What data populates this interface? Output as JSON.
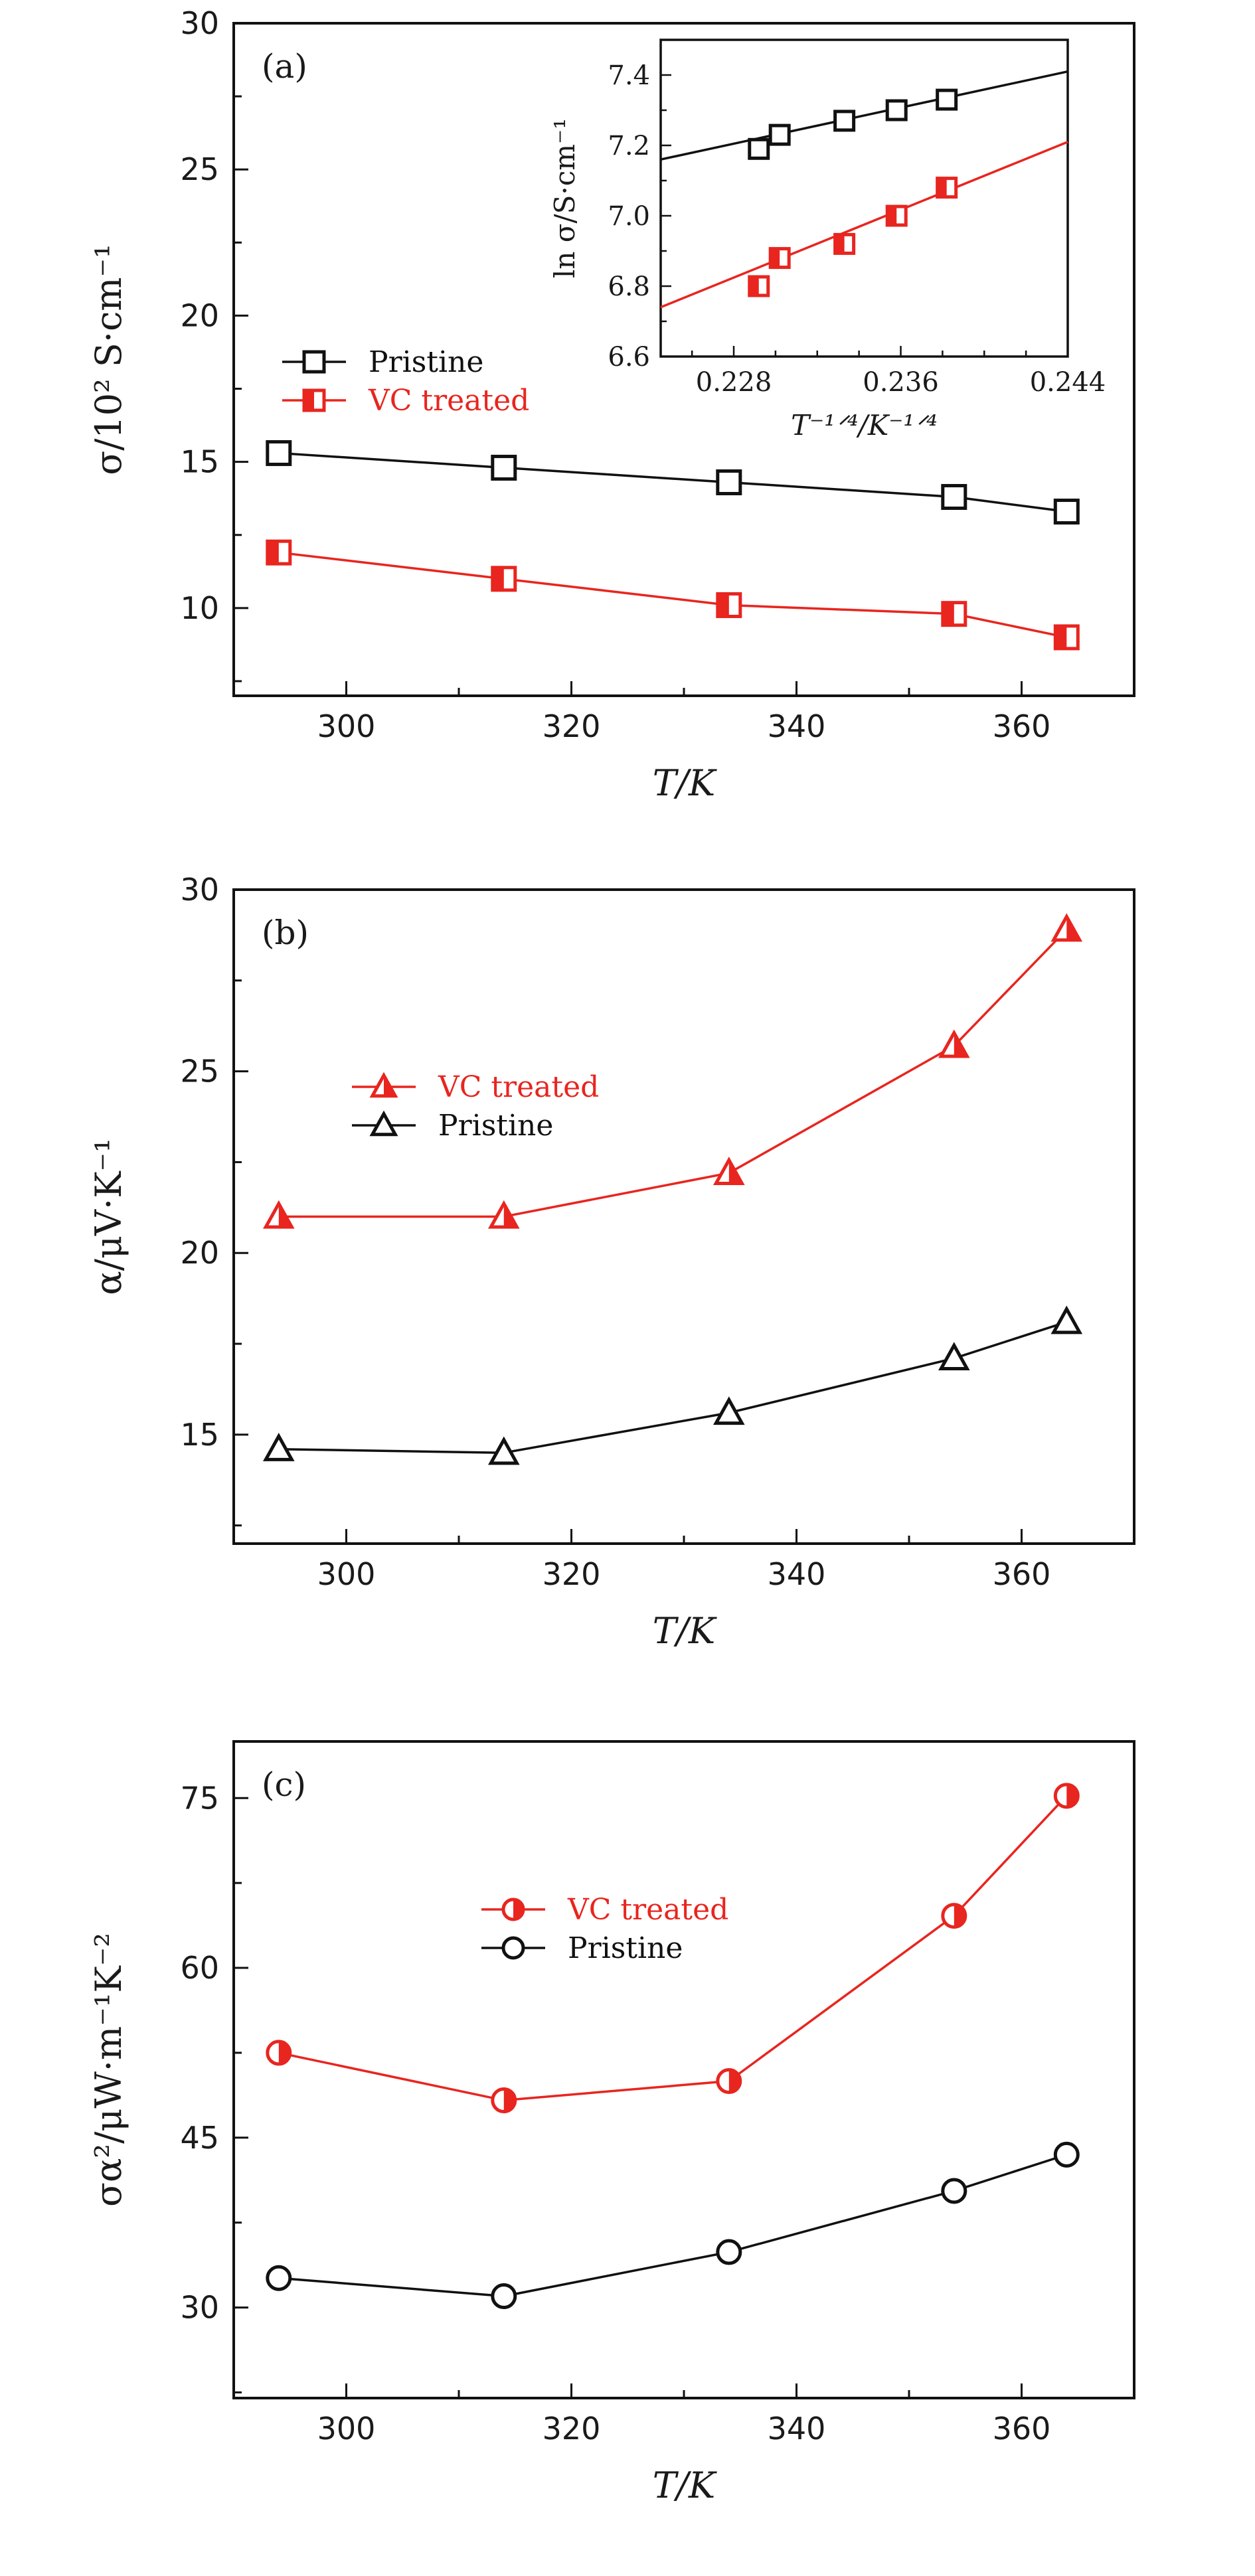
{
  "colors": {
    "black": "#111111",
    "red": "#e8251f"
  },
  "panels": [
    {
      "label": "(a)",
      "xlabel": "T/K",
      "ylabel": "σ/10² S·cm⁻¹",
      "legend_entries": [
        {
          "text": "Pristine",
          "series_index": 0
        },
        {
          "text": "VC treated",
          "series_index": 1
        }
      ]
    },
    {
      "label": "(b)",
      "xlabel": "T/K",
      "ylabel": "α/μV·K⁻¹",
      "legend_entries": [
        {
          "text": "VC treated",
          "series_index": 1
        },
        {
          "text": "Pristine",
          "series_index": 0
        }
      ]
    },
    {
      "label": "(c)",
      "xlabel": "T/K",
      "ylabel": "σα²/μW·m⁻¹K⁻²",
      "legend_entries": [
        {
          "text": "VC treated",
          "series_index": 1
        },
        {
          "text": "Pristine",
          "series_index": 0
        }
      ]
    }
  ],
  "inset": {
    "xlabel": "T⁻¹ᐟ⁴/K⁻¹ᐟ⁴",
    "ylabel": "ln σ/S·cm⁻¹"
  },
  "chart_data": [
    {
      "type": "line",
      "panel": "(a)",
      "xlabel": "T/K",
      "ylabel": "σ/10² S·cm⁻¹",
      "xlim": [
        290,
        370
      ],
      "ylim": [
        7,
        30
      ],
      "xticks": [
        300,
        320,
        340,
        360
      ],
      "yticks": [
        10,
        15,
        20,
        25,
        30
      ],
      "x": [
        294,
        314,
        334,
        354,
        364
      ],
      "series": [
        {
          "name": "Pristine",
          "color": "#111111",
          "marker": "open-square",
          "values": [
            15.3,
            14.8,
            14.3,
            13.8,
            13.3
          ]
        },
        {
          "name": "VC treated",
          "color": "#e8251f",
          "marker": "half-filled-square",
          "values": [
            11.9,
            11.0,
            10.1,
            9.8,
            9.0
          ]
        }
      ],
      "legend": "center-left"
    },
    {
      "type": "line",
      "panel": "(a) inset",
      "xlabel": "T⁻¹ᐟ⁴/K⁻¹ᐟ⁴",
      "ylabel": "ln σ/S·cm⁻¹",
      "xlim": [
        0.2245,
        0.244
      ],
      "ylim": [
        6.6,
        7.5
      ],
      "xticks": [
        "0.228",
        "0.236",
        "0.244"
      ],
      "yticks": [
        "6.6",
        "6.8",
        "7.0",
        "7.2",
        "7.4"
      ],
      "series": [
        {
          "name": "Pristine",
          "color": "#111111",
          "marker": "open-square",
          "x": [
            0.2292,
            0.2302,
            0.2333,
            0.2358,
            0.2382
          ],
          "values": [
            7.19,
            7.23,
            7.27,
            7.3,
            7.33
          ]
        },
        {
          "name": "VC treated",
          "color": "#e8251f",
          "marker": "half-filled-square",
          "x": [
            0.2292,
            0.2302,
            0.2333,
            0.2358,
            0.2382
          ],
          "values": [
            6.8,
            6.88,
            6.92,
            7.0,
            7.08
          ]
        }
      ],
      "fits": [
        {
          "series": "Pristine",
          "x": [
            0.2245,
            0.244
          ],
          "y": [
            7.16,
            7.41
          ]
        },
        {
          "series": "VC treated",
          "x": [
            0.2245,
            0.244
          ],
          "y": [
            6.74,
            7.21
          ]
        }
      ]
    },
    {
      "type": "line",
      "panel": "(b)",
      "xlabel": "T/K",
      "ylabel": "α/μV·K⁻¹",
      "xlim": [
        290,
        370
      ],
      "ylim": [
        12,
        30
      ],
      "xticks": [
        300,
        320,
        340,
        360
      ],
      "yticks": [
        15,
        20,
        25,
        30
      ],
      "x": [
        294,
        314,
        334,
        354,
        364
      ],
      "series": [
        {
          "name": "VC treated",
          "color": "#e8251f",
          "marker": "half-filled-triangle",
          "values": [
            21.0,
            21.0,
            22.2,
            25.7,
            28.9
          ]
        },
        {
          "name": "Pristine",
          "color": "#111111",
          "marker": "open-triangle",
          "values": [
            14.6,
            14.5,
            15.6,
            17.1,
            18.1
          ]
        }
      ],
      "legend": "upper-left"
    },
    {
      "type": "line",
      "panel": "(c)",
      "xlabel": "T/K",
      "ylabel": "σα²/μW·m⁻¹K⁻²",
      "xlim": [
        290,
        370
      ],
      "ylim": [
        22,
        80
      ],
      "xticks": [
        300,
        320,
        340,
        360
      ],
      "yticks": [
        30,
        45,
        60,
        75
      ],
      "x": [
        294,
        314,
        334,
        354,
        364
      ],
      "series": [
        {
          "name": "VC treated",
          "color": "#e8251f",
          "marker": "half-filled-circle",
          "values": [
            52.5,
            48.3,
            50.0,
            64.6,
            75.2
          ]
        },
        {
          "name": "Pristine",
          "color": "#111111",
          "marker": "open-circle",
          "values": [
            32.6,
            31.0,
            34.9,
            40.3,
            43.5
          ]
        }
      ],
      "legend": "upper-center"
    }
  ]
}
